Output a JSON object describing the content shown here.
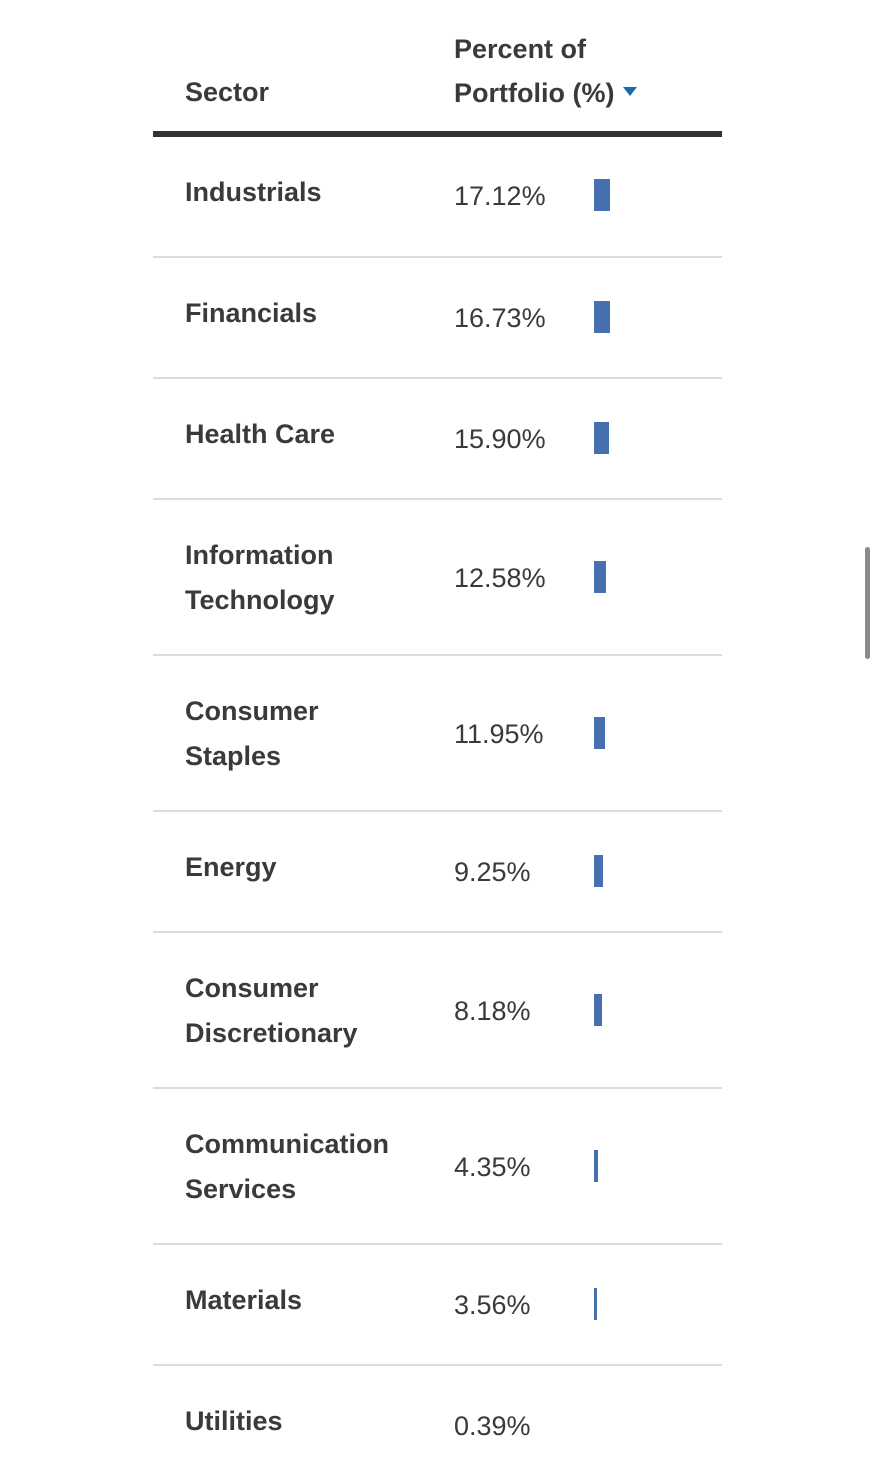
{
  "table": {
    "header": {
      "sector_label": "Sector",
      "percent_label_line1": "Percent of",
      "percent_label_line2": "Portfolio (%)",
      "sort_icon": "triangle-down-icon",
      "sort_color": "#1a6da8"
    },
    "bar_color": "#4670ad",
    "bar_max_percent": 17.12,
    "rows": [
      {
        "sector": "Industrials",
        "percent": "17.12%",
        "value": 17.12
      },
      {
        "sector": "Financials",
        "percent": "16.73%",
        "value": 16.73
      },
      {
        "sector": "Health Care",
        "percent": "15.90%",
        "value": 15.9
      },
      {
        "sector": "Information Technology",
        "percent": "12.58%",
        "value": 12.58
      },
      {
        "sector": "Consumer Staples",
        "percent": "11.95%",
        "value": 11.95
      },
      {
        "sector": "Energy",
        "percent": "9.25%",
        "value": 9.25
      },
      {
        "sector": "Consumer Discretionary",
        "percent": "8.18%",
        "value": 8.18
      },
      {
        "sector": "Communication Services",
        "percent": "4.35%",
        "value": 4.35
      },
      {
        "sector": "Materials",
        "percent": "3.56%",
        "value": 3.56
      },
      {
        "sector": "Utilities",
        "percent": "0.39%",
        "value": 0.39
      }
    ]
  }
}
